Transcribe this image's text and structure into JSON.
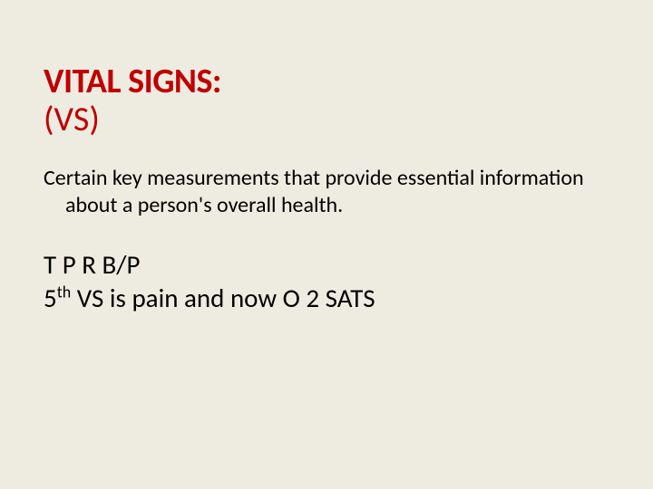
{
  "colors": {
    "background": "#eeece1",
    "title": "#c00000",
    "body": "#000000"
  },
  "typography": {
    "font_family": "Calibri, 'Segoe UI', Arial, sans-serif",
    "title_fontsize": 38,
    "paragraph_fontsize": 24,
    "line_fontsize": 29
  },
  "title": {
    "line1": "VITAL SIGNS:",
    "line2": "(VS)"
  },
  "body": {
    "paragraph": "Certain key measurements that provide essential information about a person's overall health.",
    "line_a": "T P R   B/P",
    "line_b_prefix": "5",
    "line_b_sup": "th",
    "line_b_rest": " VS is pain and now O 2 SATS"
  }
}
